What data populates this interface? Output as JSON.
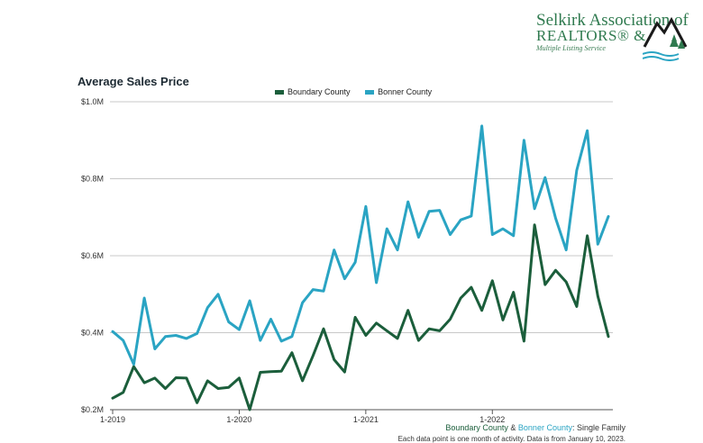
{
  "branding": {
    "line1": "Selkirk Association of",
    "line2": "REALTORS® &",
    "line3": "Multiple Listing Service",
    "color": "#2f7a4f"
  },
  "chart_data": {
    "type": "line",
    "title": "Average Sales Price",
    "xlabel": "",
    "ylabel": "",
    "ylim": [
      200000,
      1000000
    ],
    "yticks": [
      {
        "value": 200000,
        "label": "$0.2M"
      },
      {
        "value": 400000,
        "label": "$0.4M"
      },
      {
        "value": 600000,
        "label": "$0.6M"
      },
      {
        "value": 800000,
        "label": "$0.8M"
      },
      {
        "value": 1000000,
        "label": "$1.0M"
      }
    ],
    "xticks": [
      {
        "index": 0,
        "label": "1-2019"
      },
      {
        "index": 12,
        "label": "1-2020"
      },
      {
        "index": 24,
        "label": "1-2021"
      },
      {
        "index": 36,
        "label": "1-2022"
      }
    ],
    "grid": true,
    "legend_position": "top-center",
    "series": [
      {
        "name": "Boundary County",
        "color": "#1b5e3b",
        "values": [
          230000,
          245000,
          312000,
          270000,
          282000,
          255000,
          283000,
          282000,
          218000,
          275000,
          255000,
          258000,
          282000,
          200000,
          297000,
          299000,
          300000,
          348000,
          275000,
          340000,
          410000,
          330000,
          298000,
          440000,
          393000,
          425000,
          405000,
          385000,
          458000,
          380000,
          410000,
          405000,
          435000,
          490000,
          518000,
          458000,
          535000,
          433000,
          505000,
          378000,
          680000,
          525000,
          562000,
          532000,
          468000,
          652000,
          495000,
          390000
        ]
      },
      {
        "name": "Bonner County",
        "color": "#2aa4c3",
        "values": [
          403000,
          380000,
          318000,
          490000,
          358000,
          390000,
          393000,
          385000,
          398000,
          465000,
          500000,
          428000,
          408000,
          483000,
          380000,
          435000,
          378000,
          390000,
          478000,
          512000,
          508000,
          615000,
          540000,
          583000,
          728000,
          530000,
          670000,
          615000,
          740000,
          648000,
          715000,
          718000,
          655000,
          693000,
          703000,
          937000,
          655000,
          670000,
          652000,
          900000,
          722000,
          803000,
          697000,
          615000,
          822000,
          925000,
          630000,
          702000
        ]
      }
    ]
  },
  "footer": {
    "boundary": "Boundary County",
    "amp": " & ",
    "bonner": "Bonner County",
    "suffix": ": Single Family",
    "note": "Each data point is one month of activity. Data is from January 10, 2023."
  }
}
